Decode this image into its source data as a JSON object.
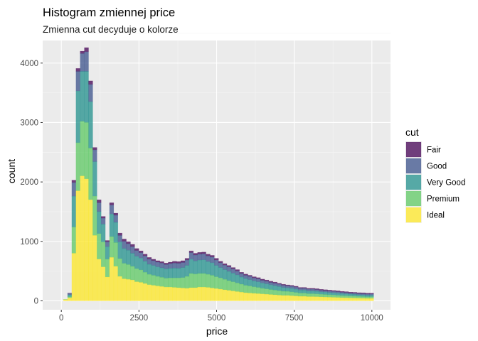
{
  "chart_data": {
    "type": "bar",
    "stacked": true,
    "title": "Histogram zmiennej price",
    "subtitle": "Zmienna cut decyduje o kolorze",
    "xlabel": "price",
    "ylabel": "count",
    "xlim": [
      -600,
      10600
    ],
    "ylim": [
      -150,
      4380
    ],
    "x_ticks": [
      0,
      2500,
      5000,
      7500,
      10000
    ],
    "x_tick_labels": [
      "0",
      "2500",
      "5000",
      "7500",
      "10000"
    ],
    "y_ticks": [
      0,
      1000,
      2000,
      3000,
      4000
    ],
    "y_tick_labels": [
      "0",
      "1000",
      "2000",
      "3000",
      "4000"
    ],
    "grid": true,
    "legend": {
      "title": "cut",
      "position": "right"
    },
    "bin_width": 135,
    "x": [
      135,
      270,
      405,
      540,
      675,
      810,
      945,
      1080,
      1215,
      1350,
      1485,
      1620,
      1755,
      1890,
      2025,
      2160,
      2295,
      2430,
      2565,
      2700,
      2835,
      2970,
      3105,
      3240,
      3375,
      3510,
      3645,
      3780,
      3915,
      4050,
      4185,
      4320,
      4455,
      4590,
      4725,
      4860,
      4995,
      5130,
      5265,
      5400,
      5535,
      5670,
      5805,
      5940,
      6075,
      6210,
      6345,
      6480,
      6615,
      6750,
      6885,
      7020,
      7155,
      7290,
      7425,
      7560,
      7695,
      7830,
      7965,
      8100,
      8235,
      8370,
      8505,
      8640,
      8775,
      8910,
      9045,
      9180,
      9315,
      9450,
      9585,
      9720,
      9855,
      9990
    ],
    "series": [
      {
        "name": "Fair",
        "color": "#440154",
        "values": [
          0,
          5,
          40,
          50,
          40,
          70,
          60,
          40,
          50,
          30,
          25,
          40,
          35,
          40,
          40,
          35,
          40,
          35,
          30,
          30,
          30,
          25,
          25,
          25,
          25,
          25,
          30,
          30,
          30,
          30,
          30,
          30,
          30,
          30,
          30,
          30,
          30,
          25,
          25,
          25,
          25,
          25,
          20,
          20,
          20,
          20,
          20,
          20,
          20,
          20,
          20,
          15,
          15,
          15,
          15,
          15,
          15,
          15,
          15,
          15,
          15,
          15,
          15,
          15,
          15,
          15,
          15,
          15,
          15,
          15,
          15,
          15,
          15,
          15
        ]
      },
      {
        "name": "Good",
        "color": "#3B528B",
        "values": [
          0,
          25,
          230,
          330,
          300,
          330,
          290,
          200,
          150,
          100,
          80,
          150,
          120,
          110,
          120,
          110,
          110,
          95,
          90,
          90,
          85,
          80,
          80,
          80,
          75,
          80,
          85,
          85,
          85,
          90,
          110,
          100,
          100,
          100,
          95,
          95,
          90,
          80,
          75,
          75,
          70,
          65,
          60,
          55,
          55,
          50,
          50,
          45,
          45,
          40,
          40,
          40,
          38,
          35,
          35,
          35,
          30,
          30,
          30,
          30,
          28,
          28,
          25,
          25,
          25,
          25,
          22,
          22,
          20,
          20,
          20,
          20,
          20,
          20
        ]
      },
      {
        "name": "Very Good",
        "color": "#21908C",
        "values": [
          0,
          30,
          520,
          870,
          840,
          860,
          780,
          580,
          370,
          300,
          210,
          380,
          340,
          280,
          250,
          240,
          220,
          210,
          200,
          185,
          170,
          165,
          160,
          160,
          155,
          160,
          165,
          160,
          170,
          185,
          240,
          220,
          225,
          230,
          215,
          210,
          190,
          175,
          165,
          155,
          145,
          135,
          120,
          115,
          105,
          100,
          95,
          90,
          85,
          80,
          75,
          70,
          65,
          60,
          60,
          55,
          50,
          50,
          45,
          45,
          45,
          40,
          40,
          38,
          36,
          35,
          34,
          32,
          30,
          30,
          28,
          28,
          26,
          26
        ]
      },
      {
        "name": "Premium",
        "color": "#5DC863",
        "values": [
          5,
          20,
          440,
          810,
          920,
          950,
          870,
          660,
          430,
          420,
          300,
          350,
          400,
          300,
          260,
          250,
          230,
          220,
          210,
          190,
          175,
          170,
          160,
          155,
          150,
          155,
          160,
          165,
          175,
          200,
          240,
          230,
          230,
          230,
          220,
          215,
          200,
          190,
          175,
          165,
          155,
          145,
          135,
          125,
          120,
          110,
          105,
          95,
          90,
          85,
          80,
          75,
          70,
          68,
          65,
          60,
          55,
          55,
          50,
          50,
          48,
          45,
          45,
          42,
          40,
          38,
          36,
          35,
          33,
          32,
          30,
          30,
          28,
          28
        ]
      },
      {
        "name": "Ideal",
        "color": "#FDE725",
        "values": [
          20,
          50,
          800,
          1850,
          2100,
          2050,
          1700,
          1100,
          700,
          570,
          400,
          730,
          580,
          410,
          370,
          360,
          350,
          320,
          310,
          290,
          270,
          260,
          250,
          240,
          230,
          230,
          225,
          220,
          215,
          210,
          220,
          220,
          230,
          230,
          225,
          215,
          205,
          195,
          185,
          175,
          165,
          155,
          145,
          135,
          130,
          125,
          120,
          115,
          110,
          105,
          100,
          95,
          90,
          90,
          85,
          80,
          75,
          75,
          70,
          70,
          68,
          65,
          62,
          60,
          58,
          55,
          52,
          50,
          48,
          46,
          44,
          42,
          40,
          40
        ]
      }
    ]
  }
}
